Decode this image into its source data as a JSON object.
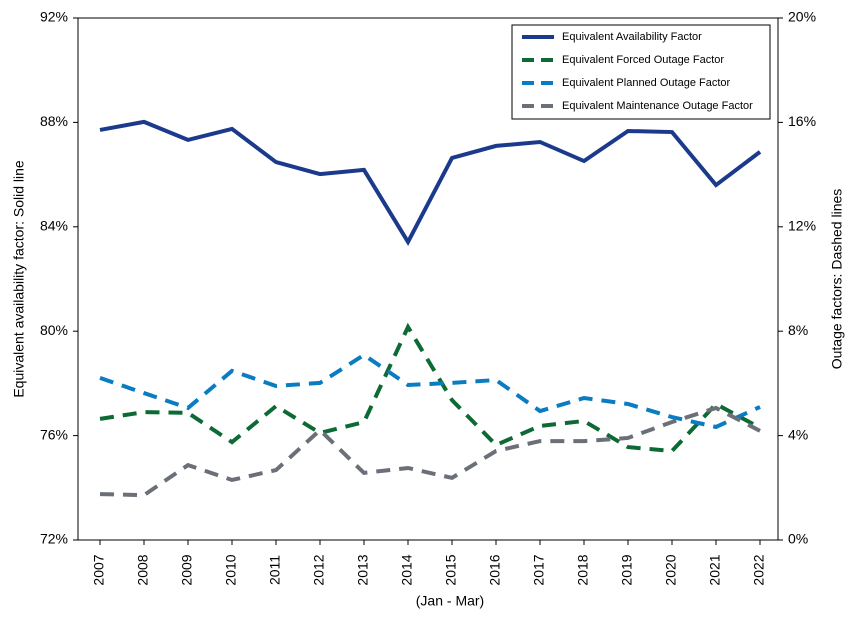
{
  "chart_data": {
    "type": "line",
    "categories": [
      "2007",
      "2008",
      "2009",
      "2010",
      "2011",
      "2012",
      "2013",
      "2014",
      "2015",
      "2016",
      "2017",
      "2018",
      "2019",
      "2020",
      "2021",
      "2022"
    ],
    "x_label": "(Jan - Mar)",
    "y_label": "Equivalent availability factor: Solid line",
    "y2_label": "Outage factors: Dashed lines",
    "ylim": [
      72,
      92
    ],
    "yticks": [
      {
        "value": 72,
        "label": "72%"
      },
      {
        "value": 76,
        "label": "76%"
      },
      {
        "value": 80,
        "label": "80%"
      },
      {
        "value": 84,
        "label": "84%"
      },
      {
        "value": 88,
        "label": "88%"
      },
      {
        "value": 92,
        "label": "92%"
      }
    ],
    "y2lim": [
      0,
      20
    ],
    "y2ticks": [
      {
        "value": 0,
        "label": "0%"
      },
      {
        "value": 4,
        "label": "4%"
      },
      {
        "value": 8,
        "label": "8%"
      },
      {
        "value": 12,
        "label": "12%"
      },
      {
        "value": 16,
        "label": "16%"
      },
      {
        "value": 20,
        "label": "20%"
      }
    ],
    "legend": "upper right",
    "series": [
      {
        "name": "Equivalent Availability Factor",
        "color": "#1c3a8c",
        "dash": false,
        "axis": "y",
        "values": [
          87.71,
          88.02,
          87.33,
          87.75,
          86.48,
          86.02,
          86.18,
          83.42,
          86.64,
          87.1,
          87.25,
          86.52,
          87.67,
          87.63,
          85.6,
          86.87
        ]
      },
      {
        "name": "Equivalent Forced Outage Factor",
        "color": "#0d6a35",
        "dash": true,
        "axis": "y2",
        "values": [
          4.64,
          4.9,
          4.87,
          3.75,
          5.13,
          4.1,
          4.52,
          8.16,
          5.36,
          3.64,
          4.37,
          4.56,
          3.56,
          3.41,
          5.21,
          4.3
        ]
      },
      {
        "name": "Equivalent Planned Outage Factor",
        "color": "#0a7cc2",
        "dash": true,
        "axis": "y2",
        "values": [
          6.21,
          5.63,
          5.06,
          6.48,
          5.9,
          6.02,
          7.09,
          5.94,
          6.02,
          6.13,
          4.94,
          5.44,
          5.21,
          4.71,
          4.33,
          5.1
        ]
      },
      {
        "name": "Equivalent Maintenance Outage Factor",
        "color": "#6b6f78",
        "dash": true,
        "axis": "y2",
        "values": [
          1.76,
          1.72,
          2.87,
          2.3,
          2.68,
          4.21,
          2.57,
          2.76,
          2.38,
          3.41,
          3.79,
          3.79,
          3.91,
          4.52,
          5.06,
          4.18
        ]
      }
    ]
  }
}
